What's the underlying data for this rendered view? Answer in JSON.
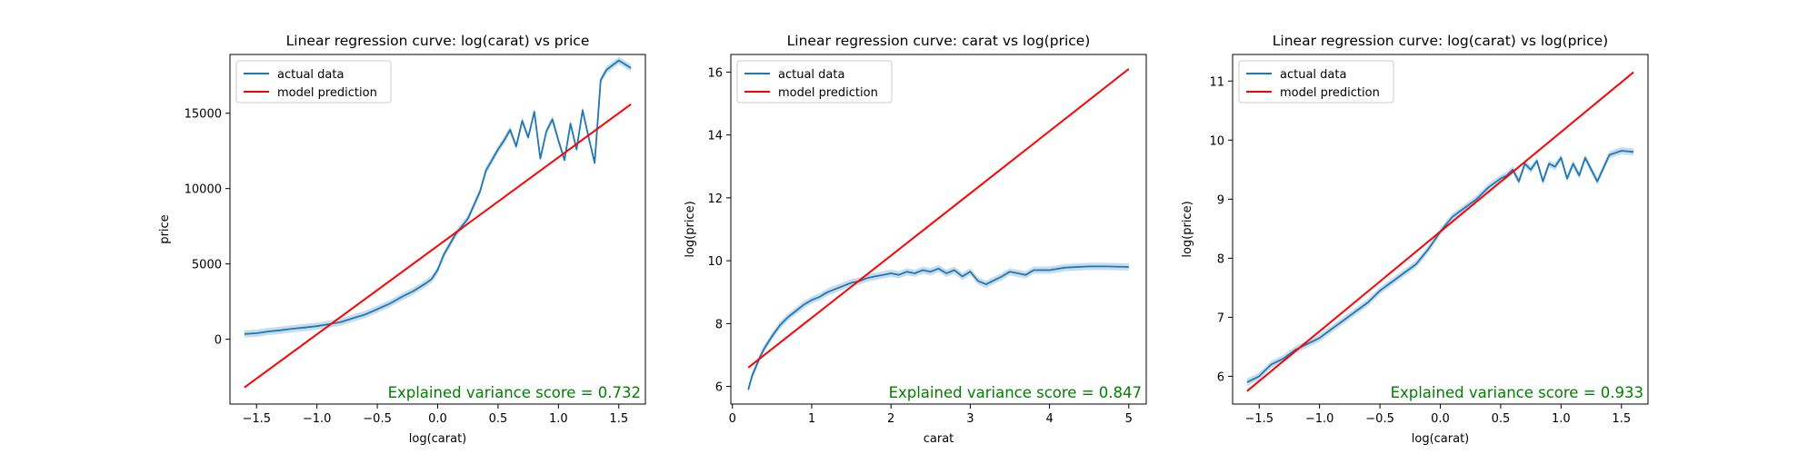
{
  "chart_data": [
    {
      "type": "line",
      "title": "Linear regression curve: log(carat) vs price",
      "xlabel": "log(carat)",
      "ylabel": "price",
      "xlim": [
        -1.72,
        1.72
      ],
      "ylim": [
        -4300,
        18900
      ],
      "xticks": [
        -1.5,
        -1.0,
        -0.5,
        0.0,
        0.5,
        1.0,
        1.5
      ],
      "xtick_labels": [
        "−1.5",
        "−1.0",
        "−0.5",
        "0.0",
        "0.5",
        "1.0",
        "1.5"
      ],
      "yticks": [
        0,
        5000,
        10000,
        15000
      ],
      "ytick_labels": [
        "0",
        "5000",
        "10000",
        "15000"
      ],
      "legend": {
        "position": "upper-left",
        "entries": [
          "actual data",
          "model prediction"
        ]
      },
      "annotation": "Explained variance score = 0.732",
      "series": [
        {
          "name": "actual data",
          "color": "#1f77b4",
          "x": [
            -1.6,
            -1.5,
            -1.4,
            -1.3,
            -1.2,
            -1.1,
            -1.0,
            -0.9,
            -0.8,
            -0.7,
            -0.6,
            -0.5,
            -0.4,
            -0.3,
            -0.2,
            -0.1,
            -0.05,
            0.0,
            0.05,
            0.1,
            0.15,
            0.2,
            0.25,
            0.3,
            0.35,
            0.4,
            0.45,
            0.5,
            0.55,
            0.6,
            0.65,
            0.7,
            0.75,
            0.8,
            0.85,
            0.9,
            0.95,
            1.0,
            1.05,
            1.1,
            1.15,
            1.2,
            1.25,
            1.3,
            1.35,
            1.4,
            1.5,
            1.6
          ],
          "y": [
            350,
            400,
            520,
            600,
            700,
            780,
            870,
            1000,
            1150,
            1400,
            1650,
            2000,
            2350,
            2800,
            3200,
            3700,
            4000,
            4600,
            5600,
            6300,
            7000,
            7500,
            8000,
            8900,
            9800,
            11200,
            11900,
            12600,
            13200,
            13900,
            12800,
            14500,
            13400,
            15100,
            12000,
            13800,
            14600,
            13200,
            11900,
            14300,
            12600,
            15200,
            13400,
            11700,
            17200,
            17900,
            18500,
            18000
          ]
        },
        {
          "name": "model prediction",
          "color": "#ff0000",
          "x": [
            -1.6,
            1.6
          ],
          "y": [
            -3200,
            15600
          ]
        }
      ]
    },
    {
      "type": "line",
      "title": "Linear regression curve: carat vs log(price)",
      "xlabel": "carat",
      "ylabel": "log(price)",
      "xlim": [
        -0.02,
        5.22
      ],
      "ylim": [
        5.44,
        16.56
      ],
      "xticks": [
        0,
        1,
        2,
        3,
        4,
        5
      ],
      "xtick_labels": [
        "0",
        "1",
        "2",
        "3",
        "4",
        "5"
      ],
      "yticks": [
        6,
        8,
        10,
        12,
        14,
        16
      ],
      "ytick_labels": [
        "6",
        "8",
        "10",
        "12",
        "14",
        "16"
      ],
      "legend": {
        "position": "upper-left",
        "entries": [
          "actual data",
          "model prediction"
        ]
      },
      "annotation": "Explained variance score = 0.847",
      "series": [
        {
          "name": "actual data",
          "color": "#1f77b4",
          "x": [
            0.2,
            0.25,
            0.3,
            0.35,
            0.4,
            0.5,
            0.6,
            0.7,
            0.8,
            0.9,
            1.0,
            1.1,
            1.2,
            1.3,
            1.4,
            1.5,
            1.6,
            1.7,
            1.8,
            1.9,
            2.0,
            2.1,
            2.2,
            2.3,
            2.4,
            2.5,
            2.6,
            2.7,
            2.8,
            2.9,
            3.0,
            3.1,
            3.2,
            3.4,
            3.5,
            3.7,
            3.8,
            4.0,
            4.2,
            4.5,
            4.7,
            5.0
          ],
          "y": [
            5.9,
            6.35,
            6.65,
            6.95,
            7.2,
            7.6,
            7.95,
            8.2,
            8.4,
            8.6,
            8.75,
            8.85,
            9.0,
            9.1,
            9.2,
            9.3,
            9.35,
            9.45,
            9.5,
            9.55,
            9.6,
            9.55,
            9.65,
            9.6,
            9.7,
            9.65,
            9.75,
            9.6,
            9.7,
            9.5,
            9.65,
            9.35,
            9.25,
            9.5,
            9.65,
            9.55,
            9.7,
            9.7,
            9.78,
            9.82,
            9.82,
            9.8
          ]
        },
        {
          "name": "model prediction",
          "color": "#ff0000",
          "x": [
            0.2,
            5.0
          ],
          "y": [
            6.6,
            16.1
          ]
        }
      ]
    },
    {
      "type": "line",
      "title": "Linear regression curve: log(carat) vs log(price)",
      "xlabel": "log(carat)",
      "ylabel": "log(price)",
      "xlim": [
        -1.72,
        1.72
      ],
      "ylim": [
        5.53,
        11.45
      ],
      "xticks": [
        -1.5,
        -1.0,
        -0.5,
        0.0,
        0.5,
        1.0,
        1.5
      ],
      "xtick_labels": [
        "−1.5",
        "−1.0",
        "−0.5",
        "0.0",
        "0.5",
        "1.0",
        "1.5"
      ],
      "yticks": [
        6,
        7,
        8,
        9,
        10,
        11
      ],
      "ytick_labels": [
        "6",
        "7",
        "8",
        "9",
        "10",
        "11"
      ],
      "legend": {
        "position": "upper-left",
        "entries": [
          "actual data",
          "model prediction"
        ]
      },
      "annotation": "Explained variance score = 0.933",
      "series": [
        {
          "name": "actual data",
          "color": "#1f77b4",
          "x": [
            -1.6,
            -1.5,
            -1.4,
            -1.3,
            -1.2,
            -1.1,
            -1.0,
            -0.9,
            -0.8,
            -0.7,
            -0.6,
            -0.5,
            -0.4,
            -0.3,
            -0.2,
            -0.1,
            0.0,
            0.1,
            0.2,
            0.3,
            0.4,
            0.5,
            0.55,
            0.6,
            0.65,
            0.7,
            0.75,
            0.8,
            0.85,
            0.9,
            0.95,
            1.0,
            1.05,
            1.1,
            1.15,
            1.2,
            1.3,
            1.4,
            1.5,
            1.6
          ],
          "y": [
            5.9,
            6.0,
            6.2,
            6.3,
            6.45,
            6.55,
            6.65,
            6.8,
            6.95,
            7.1,
            7.25,
            7.45,
            7.6,
            7.75,
            7.9,
            8.15,
            8.45,
            8.7,
            8.85,
            9.0,
            9.2,
            9.35,
            9.4,
            9.5,
            9.3,
            9.6,
            9.5,
            9.65,
            9.3,
            9.6,
            9.55,
            9.7,
            9.35,
            9.6,
            9.4,
            9.7,
            9.3,
            9.75,
            9.82,
            9.8
          ]
        },
        {
          "name": "model prediction",
          "color": "#ff0000",
          "x": [
            -1.6,
            1.6
          ],
          "y": [
            5.75,
            11.15
          ]
        }
      ]
    }
  ]
}
